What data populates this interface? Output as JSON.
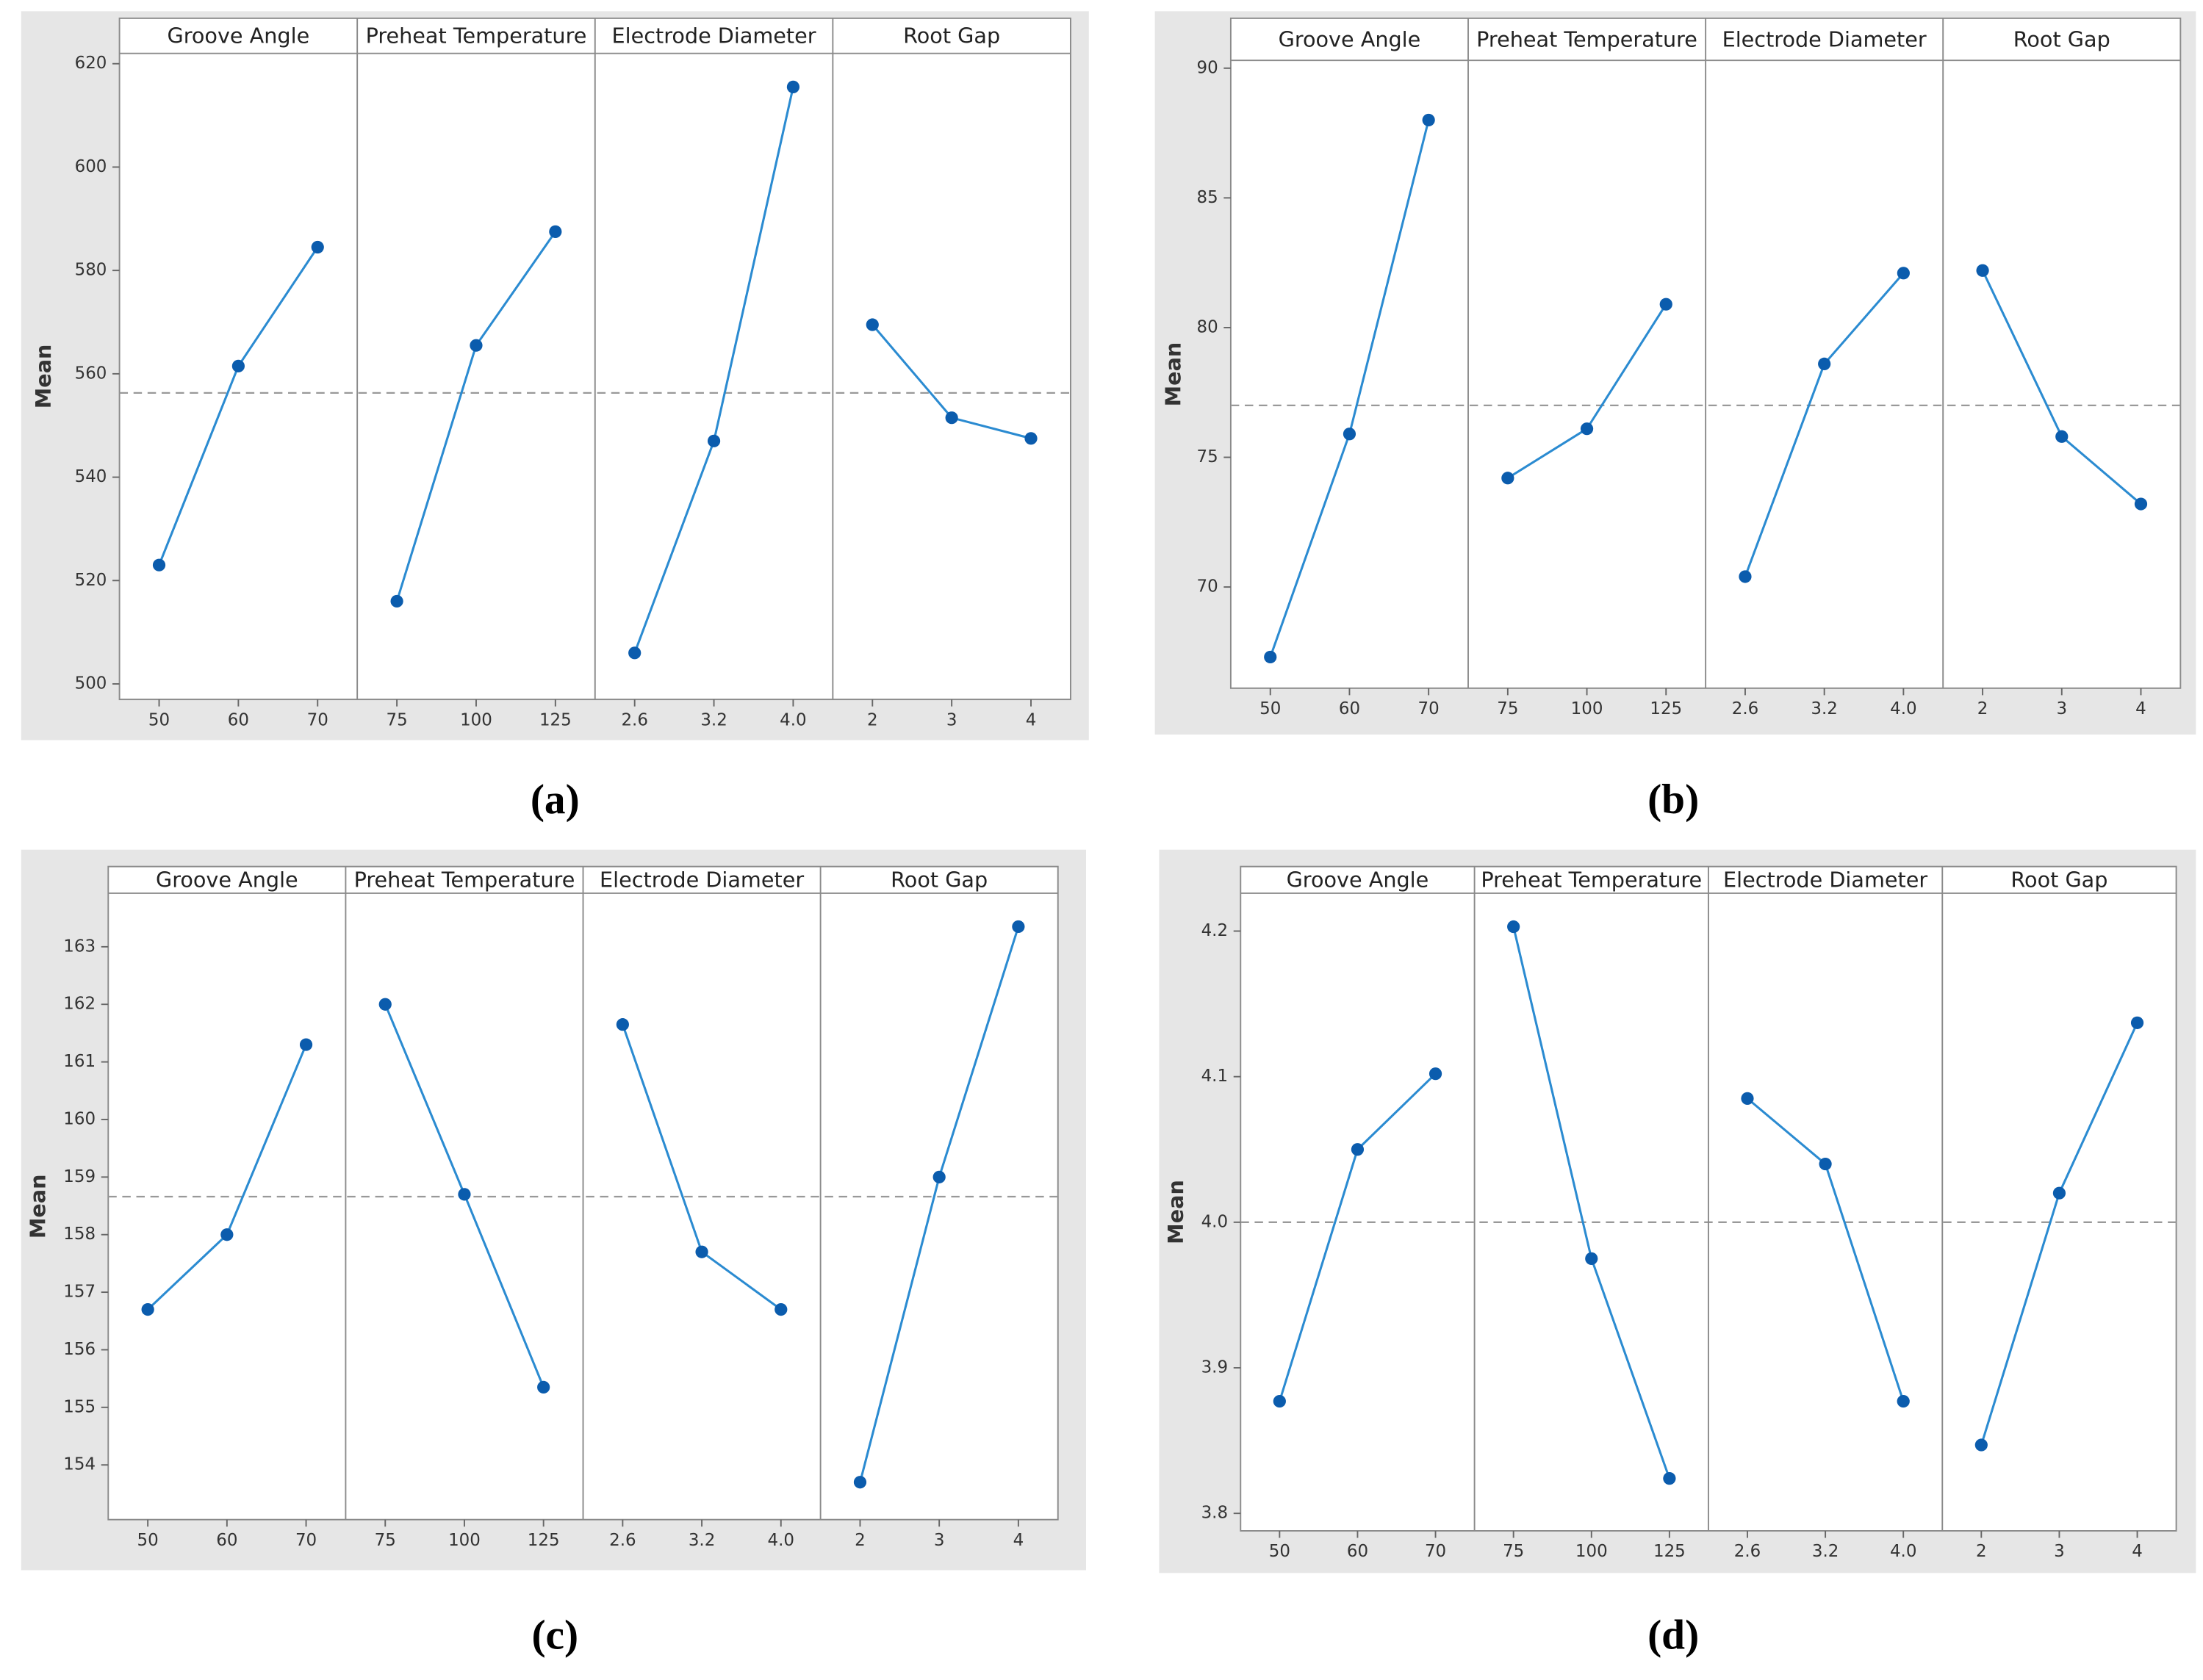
{
  "chart_data": [
    {
      "type": "line",
      "caption": "(a)",
      "ylabel": "Mean",
      "ylim": [
        497,
        622
      ],
      "yticks": [
        500,
        520,
        540,
        560,
        580,
        600,
        620
      ],
      "reference_line": 556.3,
      "line_color": "#2b8bd1",
      "marker_color": "#0b5cad",
      "panels": [
        {
          "title": "Groove Angle",
          "categories": [
            "50",
            "60",
            "70"
          ],
          "values": [
            523,
            561.5,
            584.5
          ]
        },
        {
          "title": "Preheat Temperature",
          "categories": [
            "75",
            "100",
            "125"
          ],
          "values": [
            516,
            565.5,
            587.5
          ]
        },
        {
          "title": "Electrode Diameter",
          "categories": [
            "2.6",
            "3.2",
            "4.0"
          ],
          "values": [
            506,
            547,
            615.5
          ]
        },
        {
          "title": "Root Gap",
          "categories": [
            "2",
            "3",
            "4"
          ],
          "values": [
            569.5,
            551.5,
            547.5
          ]
        }
      ]
    },
    {
      "type": "line",
      "caption": "(b)",
      "ylabel": "Mean",
      "ylim": [
        66.1,
        90.3
      ],
      "yticks": [
        70,
        75,
        80,
        85,
        90
      ],
      "reference_line": 77,
      "line_color": "#2b8bd1",
      "marker_color": "#0b5cad",
      "panels": [
        {
          "title": "Groove Angle",
          "categories": [
            "50",
            "60",
            "70"
          ],
          "values": [
            67.3,
            75.9,
            88
          ]
        },
        {
          "title": "Preheat Temperature",
          "categories": [
            "75",
            "100",
            "125"
          ],
          "values": [
            74.2,
            76.1,
            80.9
          ]
        },
        {
          "title": "Electrode Diameter",
          "categories": [
            "2.6",
            "3.2",
            "4.0"
          ],
          "values": [
            70.4,
            78.6,
            82.1
          ]
        },
        {
          "title": "Root Gap",
          "categories": [
            "2",
            "3",
            "4"
          ],
          "values": [
            82.2,
            75.8,
            73.2
          ]
        }
      ]
    },
    {
      "type": "line",
      "caption": "(c)",
      "ylabel": "Mean",
      "ylim": [
        153.05,
        163.93
      ],
      "yticks": [
        154,
        155,
        156,
        157,
        158,
        159,
        160,
        161,
        162,
        163
      ],
      "reference_line": 158.66,
      "line_color": "#2b8bd1",
      "marker_color": "#0b5cad",
      "panels": [
        {
          "title": "Groove Angle",
          "categories": [
            "50",
            "60",
            "70"
          ],
          "values": [
            156.7,
            158,
            161.3
          ]
        },
        {
          "title": "Preheat Temperature",
          "categories": [
            "75",
            "100",
            "125"
          ],
          "values": [
            162,
            158.7,
            155.35
          ]
        },
        {
          "title": "Electrode Diameter",
          "categories": [
            "2.6",
            "3.2",
            "4.0"
          ],
          "values": [
            161.65,
            157.7,
            156.7
          ]
        },
        {
          "title": "Root Gap",
          "categories": [
            "2",
            "3",
            "4"
          ],
          "values": [
            153.7,
            159,
            163.35
          ]
        }
      ]
    },
    {
      "type": "line",
      "caption": "(d)",
      "ylabel": "Mean",
      "ylim": [
        3.788,
        4.226
      ],
      "yticks": [
        3.8,
        3.9,
        {
          "value": 4,
          "label": "4.0"
        },
        4.1,
        4.2
      ],
      "reference_line": 4.0,
      "line_color": "#2b8bd1",
      "marker_color": "#0b5cad",
      "panels": [
        {
          "title": "Groove Angle",
          "categories": [
            "50",
            "60",
            "70"
          ],
          "values": [
            3.877,
            4.05,
            4.102
          ]
        },
        {
          "title": "Preheat Temperature",
          "categories": [
            "75",
            "100",
            "125"
          ],
          "values": [
            4.203,
            3.975,
            3.824
          ]
        },
        {
          "title": "Electrode Diameter",
          "categories": [
            "2.6",
            "3.2",
            "4.0"
          ],
          "values": [
            4.085,
            4.04,
            3.877
          ]
        },
        {
          "title": "Root Gap",
          "categories": [
            "2",
            "3",
            "4"
          ],
          "values": [
            3.847,
            4.02,
            4.137
          ]
        }
      ]
    }
  ]
}
